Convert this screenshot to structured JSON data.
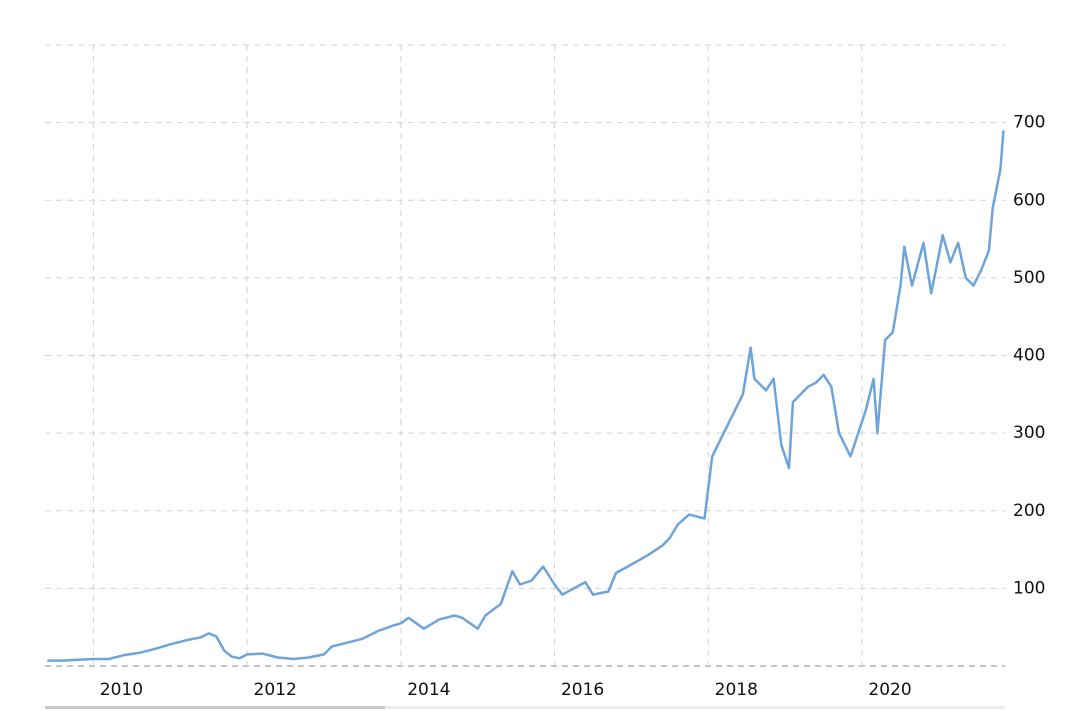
{
  "chart_data": {
    "type": "line",
    "x": [
      2009.4,
      2009.6,
      2009.8,
      2010.0,
      2010.2,
      2010.4,
      2010.6,
      2010.8,
      2011.0,
      2011.2,
      2011.4,
      2011.5,
      2011.6,
      2011.7,
      2011.8,
      2011.9,
      2012.0,
      2012.2,
      2012.4,
      2012.6,
      2012.8,
      2013.0,
      2013.1,
      2013.3,
      2013.5,
      2013.7,
      2013.9,
      2014.0,
      2014.1,
      2014.3,
      2014.5,
      2014.7,
      2014.8,
      2015.0,
      2015.1,
      2015.3,
      2015.45,
      2015.55,
      2015.7,
      2015.85,
      2016.0,
      2016.1,
      2016.25,
      2016.4,
      2016.5,
      2016.7,
      2016.8,
      2016.95,
      2017.2,
      2017.4,
      2017.5,
      2017.6,
      2017.75,
      2017.95,
      2018.05,
      2018.2,
      2018.35,
      2018.45,
      2018.55,
      2018.6,
      2018.75,
      2018.85,
      2018.95,
      2019.05,
      2019.1,
      2019.3,
      2019.4,
      2019.5,
      2019.6,
      2019.7,
      2019.85,
      2019.95,
      2020.05,
      2020.15,
      2020.2,
      2020.3,
      2020.4,
      2020.5,
      2020.55,
      2020.65,
      2020.8,
      2020.9,
      2021.0,
      2021.05,
      2021.15,
      2021.25,
      2021.35,
      2021.45,
      2021.55,
      2021.65,
      2021.7,
      2021.8,
      2021.84
    ],
    "series": [
      {
        "color": "#6ea4d9",
        "values": [
          7,
          7,
          8,
          9,
          9,
          14,
          17,
          22,
          28,
          33,
          37,
          42,
          38,
          20,
          12,
          10,
          15,
          16,
          11,
          9,
          11,
          15,
          25,
          30,
          35,
          45,
          52,
          55,
          62,
          48,
          60,
          65,
          62,
          48,
          65,
          80,
          122,
          105,
          110,
          128,
          105,
          92,
          100,
          108,
          92,
          96,
          120,
          128,
          142,
          155,
          165,
          182,
          195,
          190,
          270,
          300,
          330,
          350,
          410,
          370,
          355,
          370,
          285,
          255,
          340,
          360,
          365,
          375,
          360,
          300,
          270,
          300,
          330,
          370,
          300,
          420,
          430,
          490,
          540,
          490,
          545,
          480,
          530,
          555,
          520,
          545,
          500,
          490,
          510,
          535,
          590,
          640,
          690
        ]
      }
    ],
    "xlim": [
      2009.37,
      2021.86
    ],
    "xticks": [
      2010,
      2012,
      2014,
      2016,
      2018,
      2020
    ],
    "ylim": [
      0,
      800
    ],
    "yticks": [
      100,
      200,
      300,
      400,
      500,
      600,
      700
    ],
    "grid": true
  }
}
